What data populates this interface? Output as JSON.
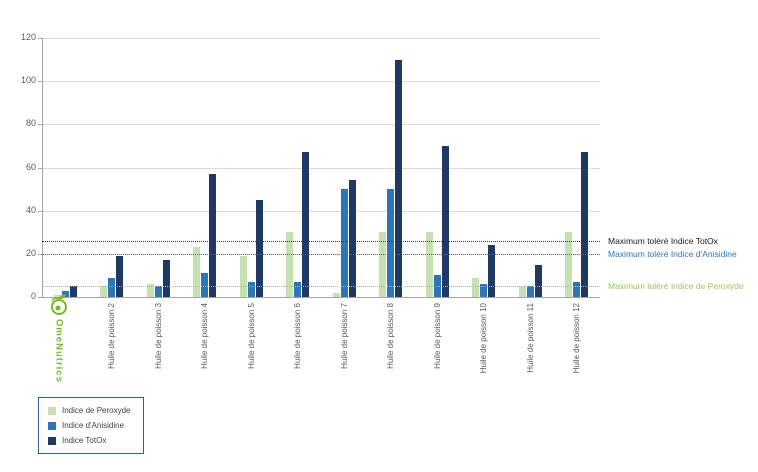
{
  "logo": {
    "text": "OmeNutrics",
    "color": "#76b82a"
  },
  "chart_data": {
    "type": "bar",
    "title": "",
    "categories": [
      "",
      "Huile de poisson 2",
      "Huile de poisson 3",
      "Huile de poisson 4",
      "Huile de poisson 5",
      "Huile de poisson 6",
      "Huile de poisson 7",
      "Huile de poisson 8",
      "Huile de poisson 9",
      "Huile de poisson 10",
      "Huile de poisson 11",
      "Huile de poisson 12"
    ],
    "series": [
      {
        "name": "Indice de Peroxyde",
        "color": "#c6e0b4",
        "values": [
          1,
          5,
          6,
          23,
          19,
          30,
          2,
          30,
          30,
          9,
          5,
          30
        ]
      },
      {
        "name": "Indice d'Anisidine",
        "color": "#2e75b6",
        "values": [
          3,
          9,
          5,
          11,
          7,
          7,
          50,
          50,
          10,
          6,
          5,
          7
        ]
      },
      {
        "name": "Indice TotOx",
        "color": "#1f3864",
        "values": [
          5,
          19,
          17,
          57,
          45,
          67,
          54,
          110,
          70,
          24,
          15,
          67
        ]
      }
    ],
    "xlabel": "",
    "ylabel": "",
    "ylim": [
      0,
      120
    ],
    "yticks": [
      0,
      20,
      40,
      60,
      80,
      100,
      120
    ],
    "grid": true,
    "legend_position": "bottom-left",
    "reference_lines": [
      {
        "label": "Maximum toléré Indice TotOx",
        "value": 26,
        "line_color": "#17375e",
        "text_color": "#1a1a1a"
      },
      {
        "label": "Maximum toléré Indice d'Anisidine",
        "value": 20,
        "line_color": "#2e75b6",
        "text_color": "#2e75b6"
      },
      {
        "label": "Maximum toléré Indice de Peroxyde",
        "value": 5,
        "line_color": "#9cc460",
        "text_color": "#9cc460"
      }
    ]
  }
}
